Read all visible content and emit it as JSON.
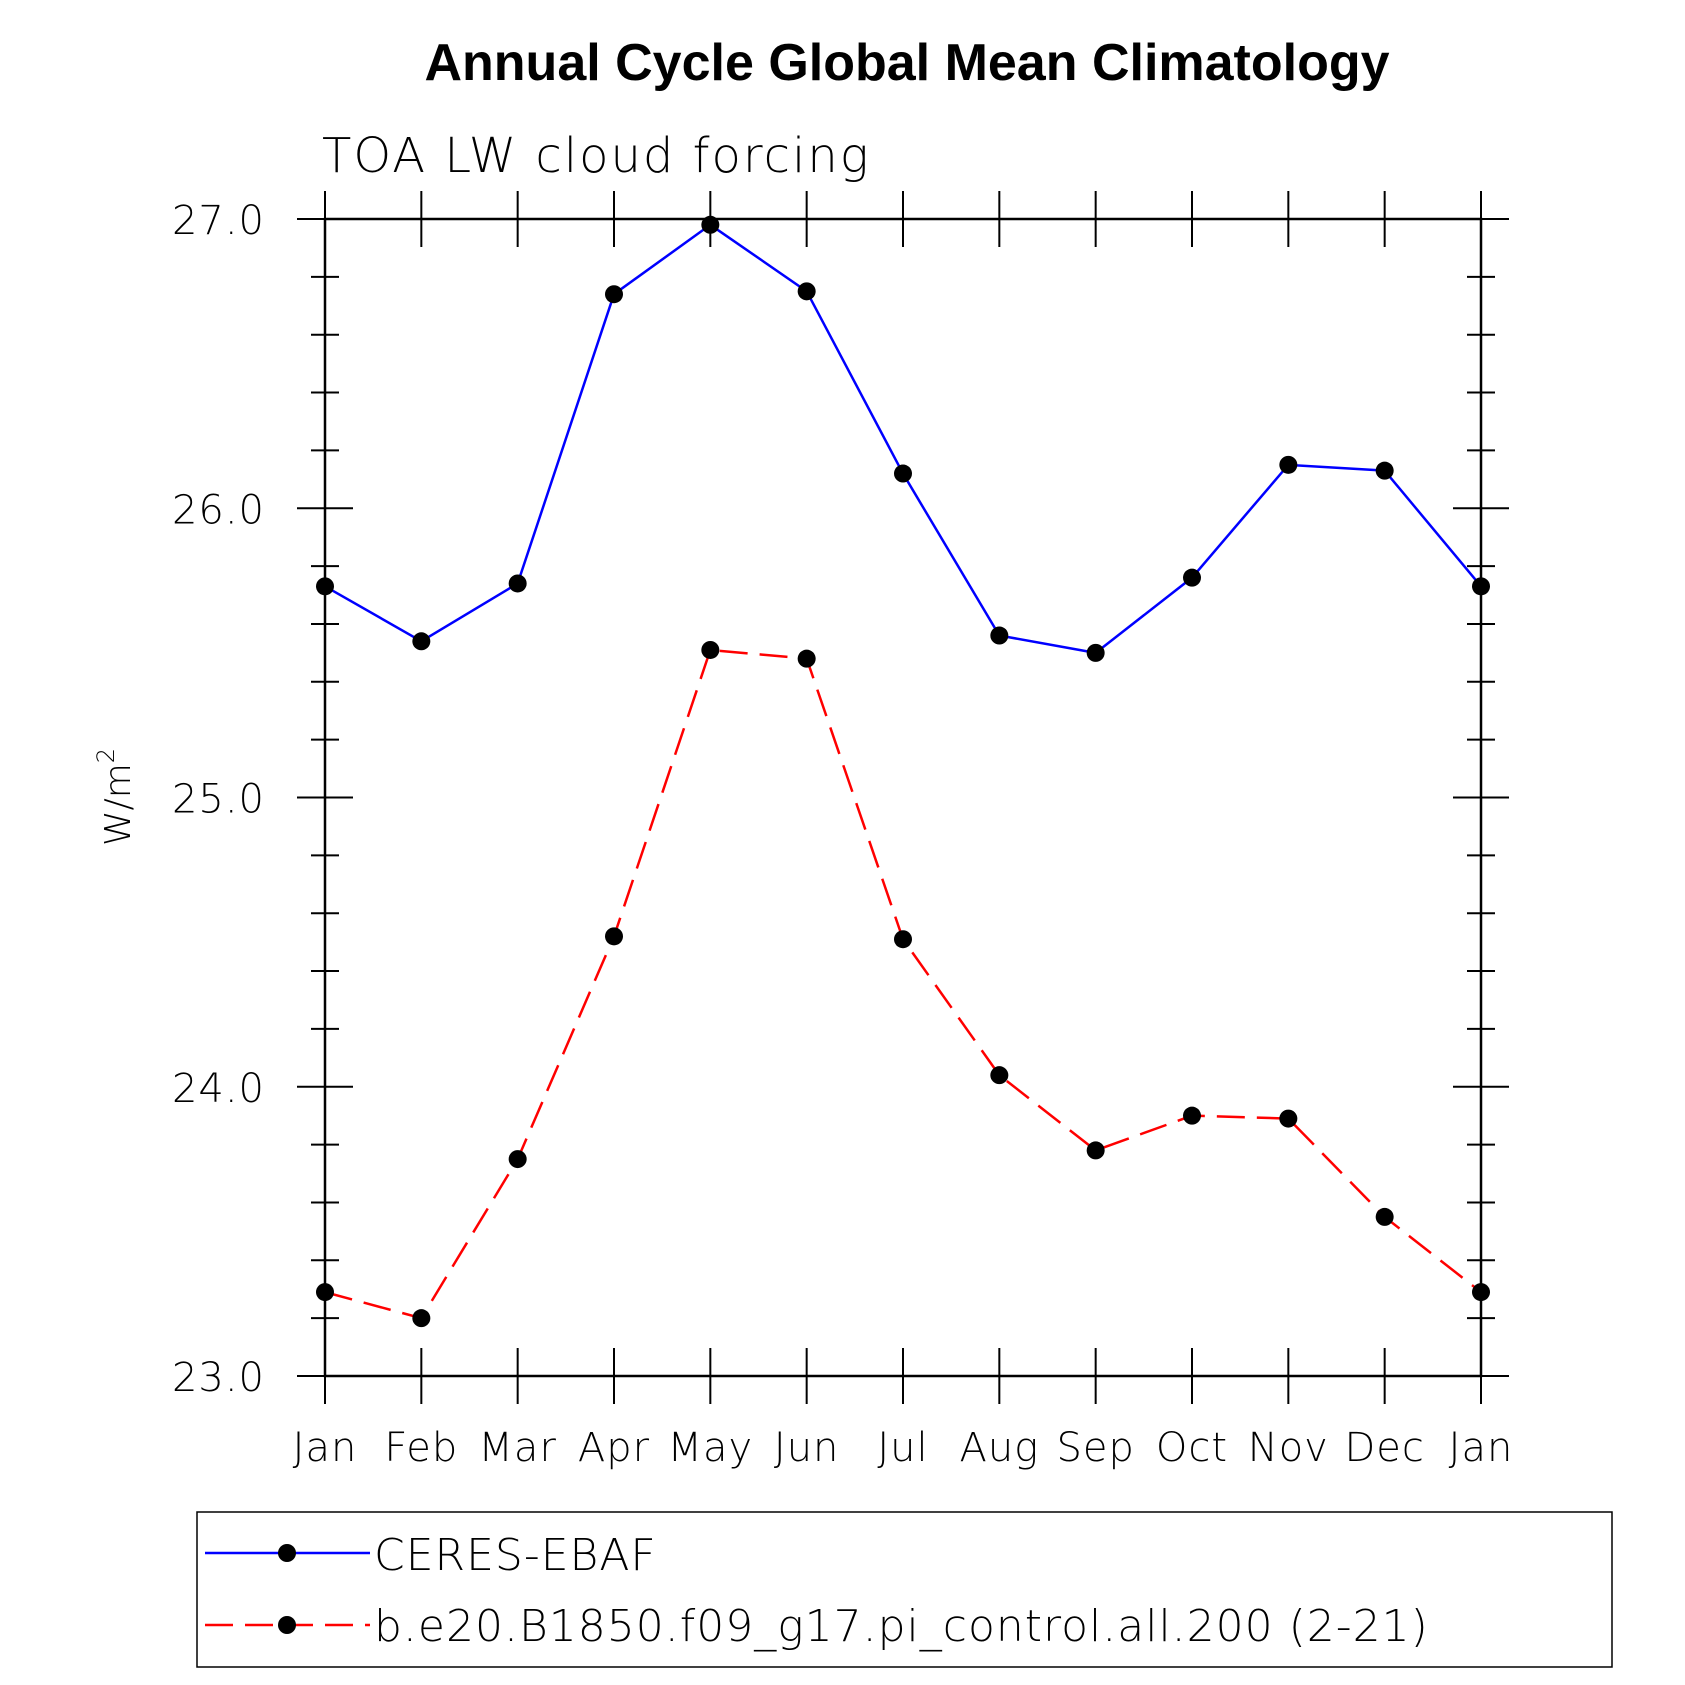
{
  "chart_data": {
    "type": "line",
    "title": "Annual Cycle Global Mean Climatology",
    "subtitle": "TOA LW cloud forcing",
    "ylabel": "W/m",
    "ylabel_superscript": "2",
    "xlabel": "",
    "ylim": [
      23.0,
      27.0
    ],
    "y_ticks": [
      "23.0",
      "24.0",
      "25.0",
      "26.0",
      "27.0"
    ],
    "categories": [
      "Jan",
      "Feb",
      "Mar",
      "Apr",
      "May",
      "Jun",
      "Jul",
      "Aug",
      "Sep",
      "Oct",
      "Nov",
      "Dec",
      "Jan"
    ],
    "series": [
      {
        "name": "CERES-EBAF",
        "color": "#0000ff",
        "dash": "solid",
        "marker_color": "#000000",
        "values": [
          25.73,
          25.54,
          25.74,
          26.74,
          26.98,
          26.75,
          26.12,
          25.56,
          25.5,
          25.76,
          26.15,
          26.13,
          25.73
        ]
      },
      {
        "name": "b.e20.B1850.f09_g17.pi_control.all.200 (2-21)",
        "color": "#ff0000",
        "dash": "dashed",
        "marker_color": "#000000",
        "values": [
          23.29,
          23.2,
          23.75,
          24.52,
          25.51,
          25.48,
          24.51,
          24.04,
          23.78,
          23.9,
          23.89,
          23.55,
          23.29
        ]
      }
    ],
    "legend_position": "bottom"
  }
}
